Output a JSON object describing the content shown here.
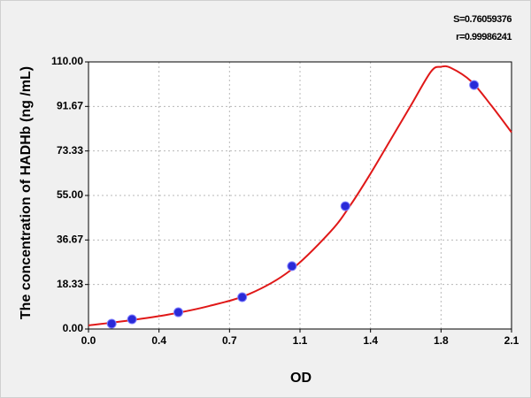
{
  "chart_data": {
    "type": "scatter",
    "xlabel": "OD",
    "ylabel": "The concentration of HADHb (ng /mL)",
    "annotations": [
      "S=0.76059376",
      "r=0.99986241"
    ],
    "xlim": [
      0,
      2.1
    ],
    "ylim": [
      0,
      110
    ],
    "xticks": [
      {
        "value": 0,
        "label": "0.0"
      },
      {
        "value": 0.35,
        "label": "0.4"
      },
      {
        "value": 0.7,
        "label": "0.7"
      },
      {
        "value": 1.05,
        "label": "1.1"
      },
      {
        "value": 1.4,
        "label": "1.4"
      },
      {
        "value": 1.75,
        "label": "1.8"
      },
      {
        "value": 2.1,
        "label": "2.1"
      }
    ],
    "yticks": [
      {
        "value": 0,
        "label": "0.00"
      },
      {
        "value": 18.33,
        "label": "18.33"
      },
      {
        "value": 36.67,
        "label": "36.67"
      },
      {
        "value": 55,
        "label": "55.00"
      },
      {
        "value": 73.33,
        "label": "73.33"
      },
      {
        "value": 91.67,
        "label": "91.67"
      },
      {
        "value": 110,
        "label": "110.00"
      }
    ],
    "grid": true,
    "series": [
      {
        "type": "scatter",
        "color": "#2a2ad8",
        "x": [
          0.115,
          0.216,
          0.446,
          0.763,
          1.01,
          1.275,
          1.914
        ],
        "values": [
          2.2,
          4,
          6.9,
          13.1,
          25.9,
          50.6,
          100.5
        ]
      },
      {
        "type": "line",
        "color": "#e01818",
        "x": [
          0,
          0.2,
          0.4,
          0.6,
          0.8,
          1.0,
          1.2,
          1.3,
          1.4,
          1.5,
          1.6,
          1.7,
          1.75,
          1.8,
          1.9,
          2.0,
          2.1
        ],
        "values": [
          1.5,
          3.5,
          6,
          9.5,
          14.5,
          24,
          40,
          51,
          64,
          78,
          92,
          106,
          108,
          107.5,
          102,
          92,
          81
        ]
      }
    ]
  }
}
